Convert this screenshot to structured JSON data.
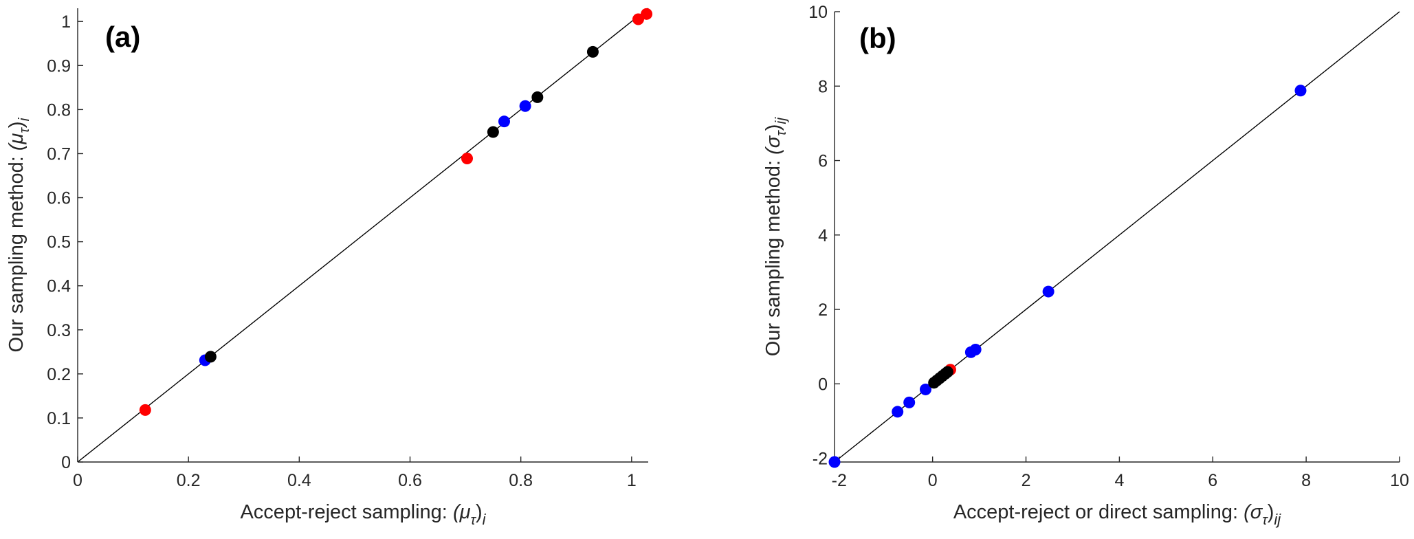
{
  "chart_data": [
    {
      "type": "scatter",
      "panel_label": "(a)",
      "xlabel_prefix": "Accept-reject sampling: ",
      "xlabel_symbol": "(μ",
      "xlabel_sub_tau": "τ",
      "xlabel_close": ")",
      "xlabel_index": "i",
      "ylabel_prefix": "Our sampling method: ",
      "ylabel_symbol": "(μ",
      "ylabel_sub_tau": "τ",
      "ylabel_close": ")",
      "ylabel_index": "i",
      "xlim": [
        0,
        1.03
      ],
      "ylim": [
        0,
        1.03
      ],
      "xticks": [
        0,
        0.2,
        0.4,
        0.6,
        0.8,
        1
      ],
      "xtick_labels": [
        "0",
        "0.2",
        "0.4",
        "0.6",
        "0.8",
        "1"
      ],
      "yticks": [
        0,
        0.1,
        0.2,
        0.3,
        0.4,
        0.5,
        0.6,
        0.7,
        0.8,
        0.9,
        1
      ],
      "ytick_labels": [
        "0",
        "0.1",
        "0.2",
        "0.3",
        "0.4",
        "0.5",
        "0.6",
        "0.7",
        "0.8",
        "0.9",
        "1"
      ],
      "reference_line": "y = x",
      "series": [
        {
          "name": "red",
          "color": "#ff0000",
          "points": [
            [
              0.122,
              0.118
            ],
            [
              0.703,
              0.689
            ],
            [
              1.012,
              1.005
            ],
            [
              1.027,
              1.017
            ]
          ]
        },
        {
          "name": "blue",
          "color": "#0000ff",
          "points": [
            [
              0.23,
              0.231
            ],
            [
              0.77,
              0.773
            ],
            [
              0.808,
              0.808
            ]
          ]
        },
        {
          "name": "black",
          "color": "#000000",
          "points": [
            [
              0.24,
              0.239
            ],
            [
              0.75,
              0.749
            ],
            [
              0.83,
              0.828
            ],
            [
              0.93,
              0.931
            ]
          ]
        }
      ]
    },
    {
      "type": "scatter",
      "panel_label": "(b)",
      "xlabel_prefix": "Accept-reject or direct sampling: ",
      "xlabel_symbol": "(σ",
      "xlabel_sub_tau": "τ",
      "xlabel_close": ")",
      "xlabel_index": "ij",
      "ylabel_prefix": "Our sampling method: ",
      "ylabel_symbol": "(σ",
      "ylabel_sub_tau": "τ",
      "ylabel_close": ")",
      "ylabel_index": "ij",
      "xlim": [
        -2.1,
        10
      ],
      "ylim": [
        -2.1,
        10
      ],
      "xticks": [
        -2,
        0,
        2,
        4,
        6,
        8,
        10
      ],
      "xtick_labels": [
        "-2",
        "0",
        "2",
        "4",
        "6",
        "8",
        "10"
      ],
      "yticks": [
        -2,
        0,
        2,
        4,
        6,
        8,
        10
      ],
      "ytick_labels": [
        "-2",
        "0",
        "2",
        "4",
        "6",
        "8",
        "10"
      ],
      "reference_line": "y = x",
      "series": [
        {
          "name": "blue",
          "color": "#0000ff",
          "points": [
            [
              -2.1,
              -2.1
            ],
            [
              -0.75,
              -0.75
            ],
            [
              -0.5,
              -0.5
            ],
            [
              -0.15,
              -0.15
            ],
            [
              0.82,
              0.85
            ],
            [
              0.92,
              0.92
            ],
            [
              2.48,
              2.48
            ],
            [
              7.88,
              7.88
            ]
          ]
        },
        {
          "name": "red",
          "color": "#ff0000",
          "points": [
            [
              0.38,
              0.38
            ]
          ]
        },
        {
          "name": "black",
          "color": "#000000",
          "points": [
            [
              0.03,
              0.03
            ],
            [
              0.09,
              0.09
            ],
            [
              0.15,
              0.15
            ],
            [
              0.21,
              0.21
            ],
            [
              0.27,
              0.27
            ],
            [
              0.32,
              0.32
            ]
          ]
        }
      ]
    }
  ]
}
